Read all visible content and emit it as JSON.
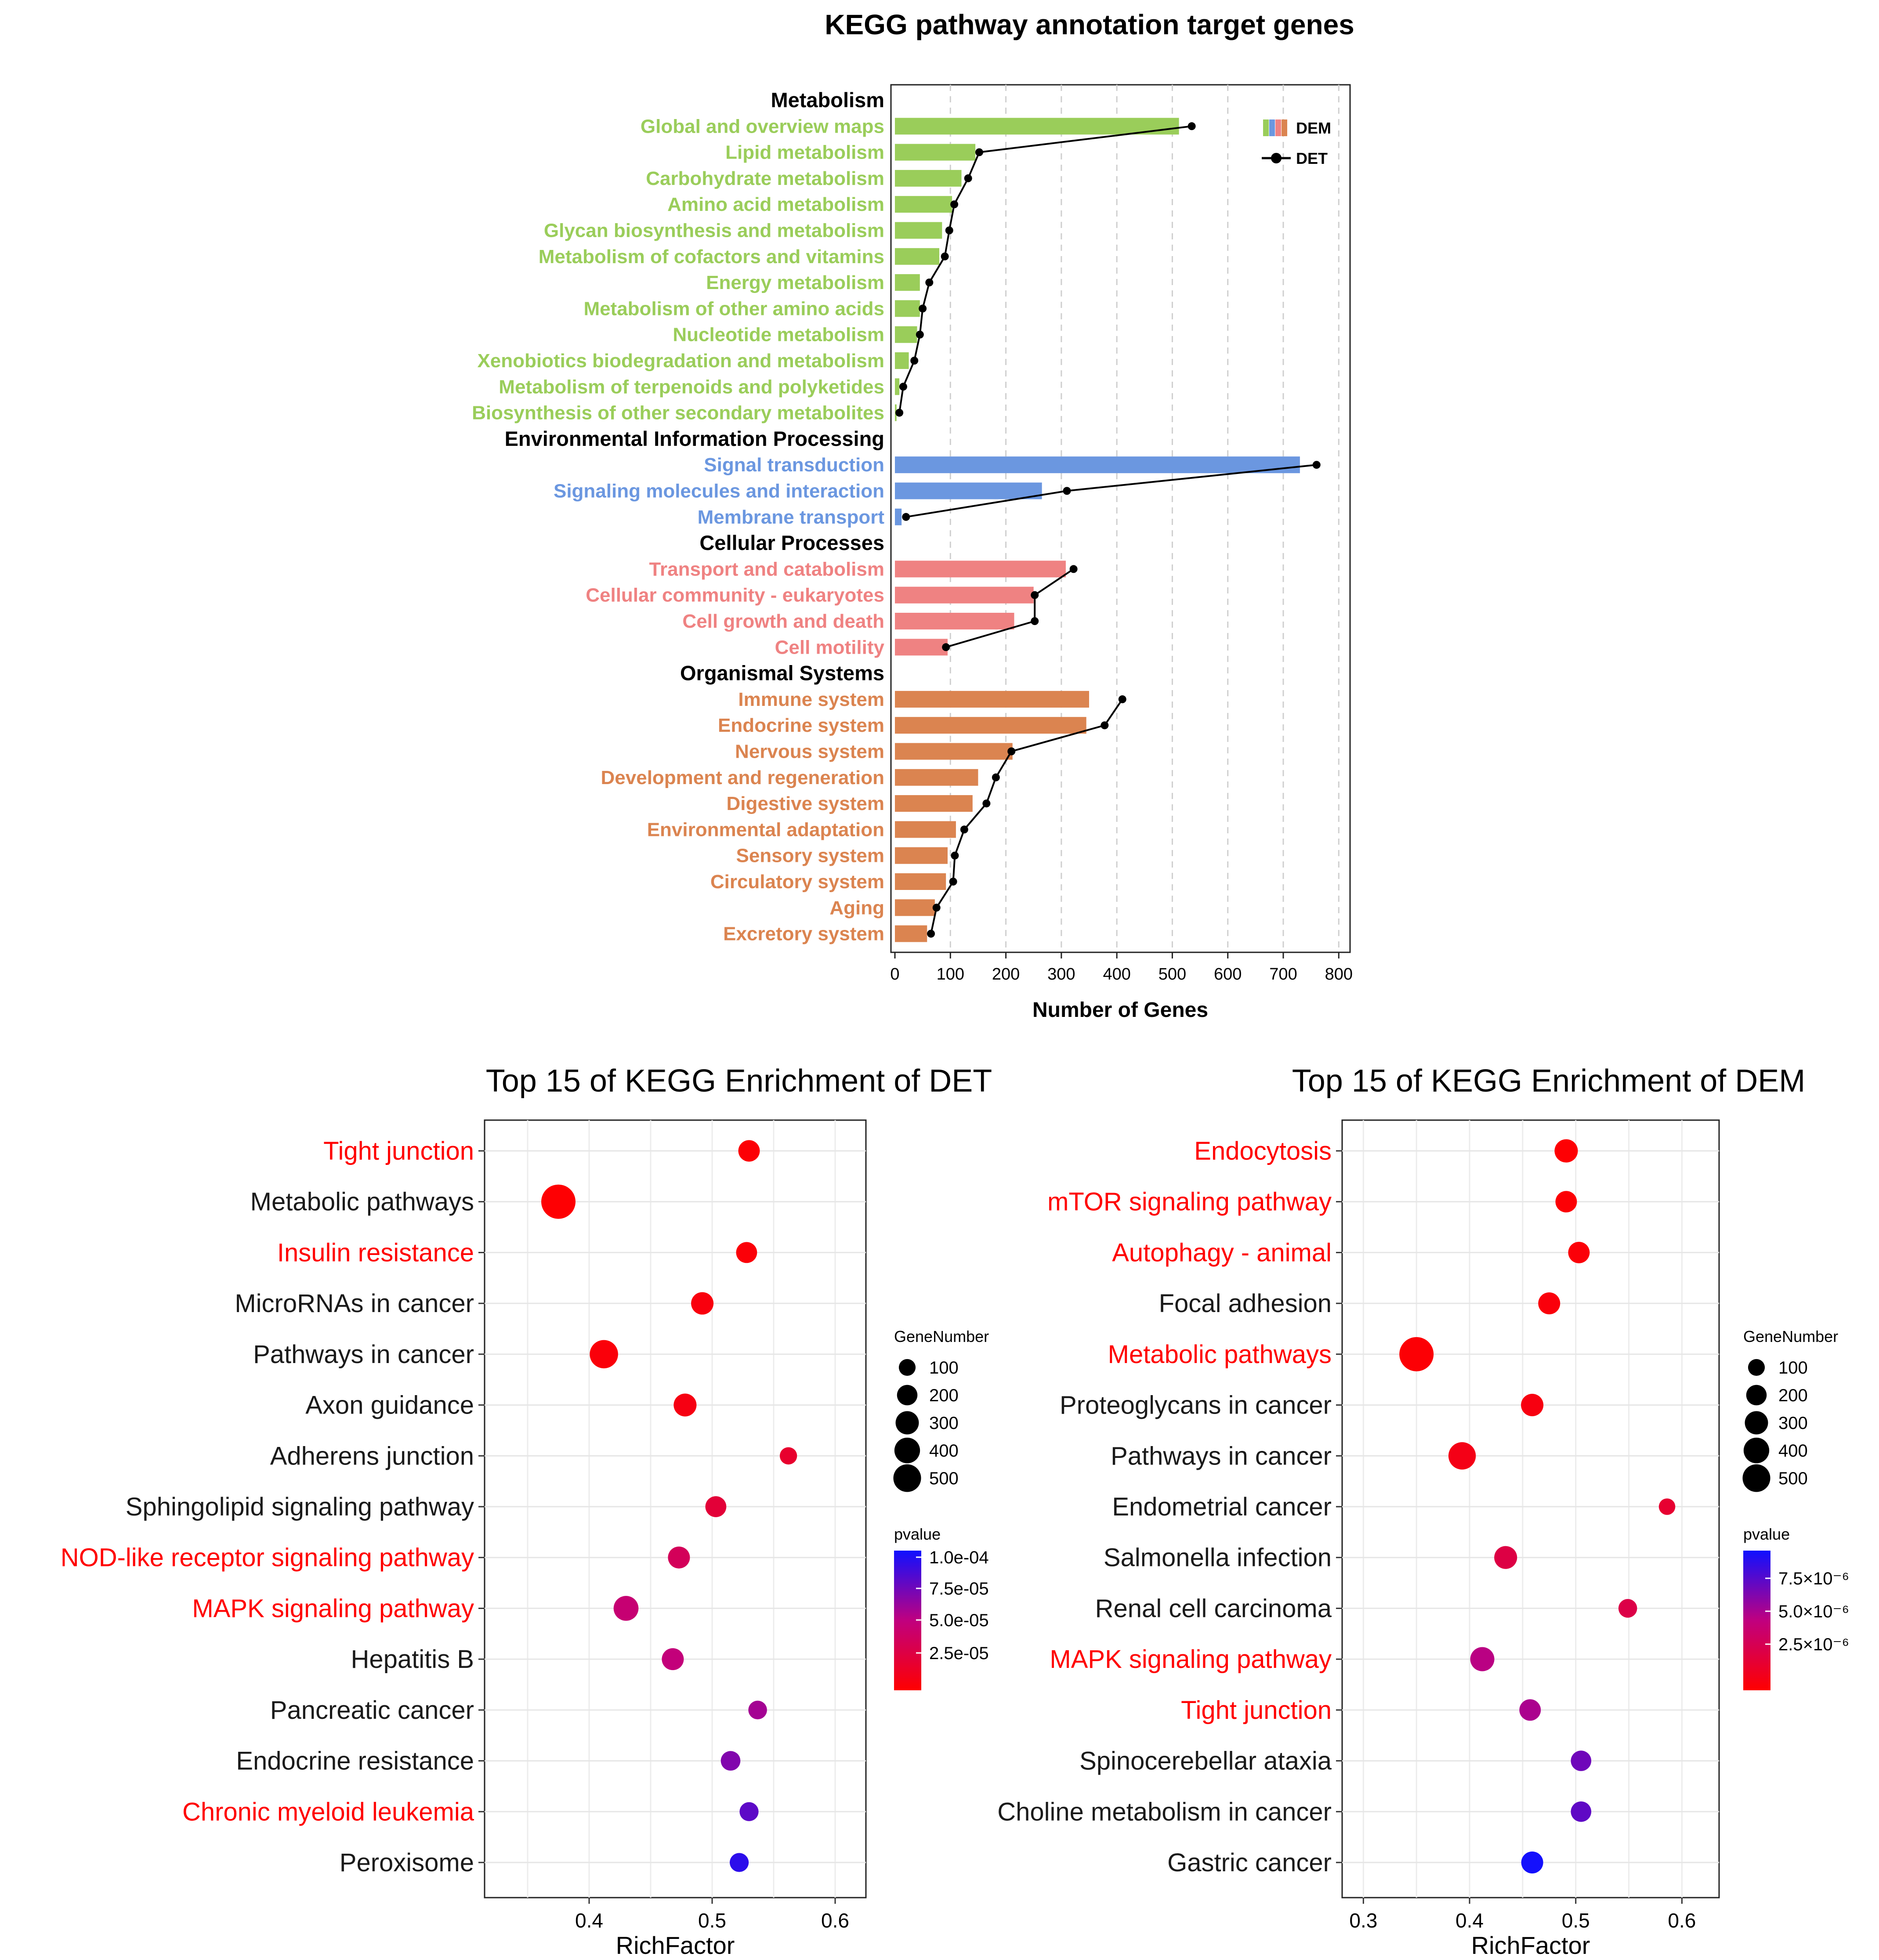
{
  "colors": {
    "metabolism": "#9ACD5A",
    "env": "#6B97E0",
    "cellular": "#EF8282",
    "organismal": "#DB8450",
    "line": "#000000",
    "grid": "#cfcfcf",
    "red_label": "#FF0000",
    "black_label": "#1a1a1a",
    "p_low": "#FF0000",
    "p_high": "#1010FF"
  },
  "chart_data": [
    {
      "type": "bar",
      "title": "KEGG pathway annotation target genes",
      "xlabel": "Number of Genes",
      "xlim": [
        0,
        850
      ],
      "xticks": [
        0,
        100,
        200,
        300,
        400,
        500,
        600,
        700,
        800
      ],
      "legend": {
        "position": "top-right",
        "entries": [
          "DEM",
          "DET"
        ]
      },
      "groups": [
        {
          "name": "Metabolism",
          "color_key": "metabolism",
          "items": [
            {
              "label": "Global and overview maps",
              "dem": 512,
              "det": 535
            },
            {
              "label": "Lipid metabolism",
              "dem": 145,
              "det": 152
            },
            {
              "label": "Carbohydrate metabolism",
              "dem": 120,
              "det": 132
            },
            {
              "label": "Amino acid metabolism",
              "dem": 103,
              "det": 107
            },
            {
              "label": "Glycan biosynthesis and metabolism",
              "dem": 85,
              "det": 98
            },
            {
              "label": "Metabolism of cofactors and vitamins",
              "dem": 80,
              "det": 90
            },
            {
              "label": "Energy metabolism",
              "dem": 45,
              "det": 62
            },
            {
              "label": "Metabolism of other amino acids",
              "dem": 45,
              "det": 50
            },
            {
              "label": "Nucleotide metabolism",
              "dem": 40,
              "det": 45
            },
            {
              "label": "Xenobiotics biodegradation and metabolism",
              "dem": 25,
              "det": 35
            },
            {
              "label": "Metabolism of terpenoids and polyketides",
              "dem": 8,
              "det": 15
            },
            {
              "label": "Biosynthesis of other secondary metabolites",
              "dem": 3,
              "det": 8
            }
          ]
        },
        {
          "name": "Environmental Information Processing",
          "color_key": "env",
          "items": [
            {
              "label": "Signal transduction",
              "dem": 730,
              "det": 760
            },
            {
              "label": "Signaling molecules and interaction",
              "dem": 265,
              "det": 310
            },
            {
              "label": "Membrane transport",
              "dem": 12,
              "det": 20
            }
          ]
        },
        {
          "name": "Cellular Processes",
          "color_key": "cellular",
          "items": [
            {
              "label": "Transport and catabolism",
              "dem": 308,
              "det": 322
            },
            {
              "label": "Cellular community - eukaryotes",
              "dem": 250,
              "det": 252
            },
            {
              "label": "Cell growth and death",
              "dem": 215,
              "det": 252
            },
            {
              "label": "Cell motility",
              "dem": 95,
              "det": 92
            }
          ]
        },
        {
          "name": "Organismal Systems",
          "color_key": "organismal",
          "items": [
            {
              "label": "Immune system",
              "dem": 350,
              "det": 410
            },
            {
              "label": "Endocrine system",
              "dem": 345,
              "det": 378
            },
            {
              "label": "Nervous system",
              "dem": 212,
              "det": 210
            },
            {
              "label": "Development and regeneration",
              "dem": 150,
              "det": 182
            },
            {
              "label": "Digestive system",
              "dem": 140,
              "det": 165
            },
            {
              "label": "Environmental adaptation",
              "dem": 110,
              "det": 125
            },
            {
              "label": "Sensory system",
              "dem": 95,
              "det": 108
            },
            {
              "label": "Circulatory system",
              "dem": 92,
              "det": 105
            },
            {
              "label": "Aging",
              "dem": 72,
              "det": 75
            },
            {
              "label": "Excretory system",
              "dem": 58,
              "det": 65
            }
          ]
        }
      ]
    },
    {
      "type": "scatter",
      "title": "Top 15 of KEGG Enrichment of DET",
      "xlabel": "RichFactor",
      "xlim": [
        0.315,
        0.625
      ],
      "xticks": [
        0.4,
        0.5,
        0.6
      ],
      "xtick_labels": [
        "0.4",
        "0.5",
        "0.6"
      ],
      "size_legend": {
        "title": "GeneNumber",
        "values": [
          100,
          200,
          300,
          400,
          500
        ]
      },
      "color_legend": {
        "title": "pvalue",
        "labels": [
          "1.0e-04",
          "7.5e-05",
          "5.0e-05",
          "2.5e-05"
        ],
        "min": 0.0,
        "max": 0.0001
      },
      "points": [
        {
          "label": "Tight junction",
          "rich": 0.53,
          "genes": 120,
          "p": 2e-06,
          "highlight": true
        },
        {
          "label": "Metabolic pathways",
          "rich": 0.375,
          "genes": 520,
          "p": 1e-06,
          "highlight": false
        },
        {
          "label": "Insulin resistance",
          "rich": 0.528,
          "genes": 110,
          "p": 3e-06,
          "highlight": true
        },
        {
          "label": "MicroRNAs in cancer",
          "rich": 0.492,
          "genes": 140,
          "p": 5e-06,
          "highlight": false
        },
        {
          "label": "Pathways in cancer",
          "rich": 0.412,
          "genes": 300,
          "p": 4e-06,
          "highlight": false
        },
        {
          "label": "Axon guidance",
          "rich": 0.478,
          "genes": 150,
          "p": 7e-06,
          "highlight": false
        },
        {
          "label": "Adherens junction",
          "rich": 0.562,
          "genes": 50,
          "p": 1.8e-05,
          "highlight": false
        },
        {
          "label": "Sphingolipid signaling pathway",
          "rich": 0.503,
          "genes": 110,
          "p": 2.2e-05,
          "highlight": false
        },
        {
          "label": "NOD-like receptor signaling pathway",
          "rich": 0.473,
          "genes": 130,
          "p": 3.5e-05,
          "highlight": true
        },
        {
          "label": "MAPK signaling pathway",
          "rich": 0.43,
          "genes": 200,
          "p": 4.5e-05,
          "highlight": true
        },
        {
          "label": "Hepatitis B",
          "rich": 0.468,
          "genes": 130,
          "p": 4.8e-05,
          "highlight": false
        },
        {
          "label": "Pancreatic cancer",
          "rich": 0.537,
          "genes": 70,
          "p": 5.8e-05,
          "highlight": false
        },
        {
          "label": "Endocrine resistance",
          "rich": 0.515,
          "genes": 85,
          "p": 6.8e-05,
          "highlight": false
        },
        {
          "label": "Chronic myeloid leukemia",
          "rich": 0.53,
          "genes": 75,
          "p": 7.8e-05,
          "highlight": true
        },
        {
          "label": "Peroxisome",
          "rich": 0.522,
          "genes": 75,
          "p": 9.2e-05,
          "highlight": false
        }
      ]
    },
    {
      "type": "scatter",
      "title": "Top 15 of KEGG Enrichment of DEM",
      "xlabel": "RichFactor",
      "xlim": [
        0.28,
        0.635
      ],
      "xticks": [
        0.3,
        0.4,
        0.5,
        0.6
      ],
      "xtick_labels": [
        "0.3",
        "0.4",
        "0.5",
        "0.6"
      ],
      "size_legend": {
        "title": "GeneNumber",
        "values": [
          100,
          200,
          300,
          400,
          500
        ]
      },
      "color_legend": {
        "title": "pvalue",
        "labels": [
          "7.5×10⁻⁶",
          "5.0×10⁻⁶",
          "2.5×10⁻⁶"
        ],
        "min": 0.0,
        "max": 9.3e-06
      },
      "points": [
        {
          "label": "Endocytosis",
          "rich": 0.491,
          "genes": 160,
          "p": 1e-07,
          "highlight": true
        },
        {
          "label": "mTOR signaling pathway",
          "rich": 0.491,
          "genes": 120,
          "p": 2e-07,
          "highlight": true
        },
        {
          "label": "Autophagy - animal",
          "rich": 0.503,
          "genes": 120,
          "p": 3e-07,
          "highlight": true
        },
        {
          "label": "Focal adhesion",
          "rich": 0.475,
          "genes": 130,
          "p": 4e-07,
          "highlight": false
        },
        {
          "label": "Metabolic pathways",
          "rich": 0.35,
          "genes": 520,
          "p": 2e-07,
          "highlight": true
        },
        {
          "label": "Proteoglycans in cancer",
          "rich": 0.459,
          "genes": 140,
          "p": 6e-07,
          "highlight": false
        },
        {
          "label": "Pathways in cancer",
          "rich": 0.393,
          "genes": 270,
          "p": 8e-07,
          "highlight": false
        },
        {
          "label": "Endometrial cancer",
          "rich": 0.586,
          "genes": 40,
          "p": 1.8e-06,
          "highlight": false
        },
        {
          "label": "Salmonella infection",
          "rich": 0.434,
          "genes": 150,
          "p": 2.5e-06,
          "highlight": false
        },
        {
          "label": "Renal cell carcinoma",
          "rich": 0.549,
          "genes": 70,
          "p": 2.6e-06,
          "highlight": false
        },
        {
          "label": "MAPK signaling pathway",
          "rich": 0.412,
          "genes": 180,
          "p": 4.8e-06,
          "highlight": true
        },
        {
          "label": "Tight junction",
          "rich": 0.457,
          "genes": 120,
          "p": 5.2e-06,
          "highlight": true
        },
        {
          "label": "Spinocerebellar ataxia",
          "rich": 0.505,
          "genes": 100,
          "p": 6.8e-06,
          "highlight": false
        },
        {
          "label": "Choline metabolism in cancer",
          "rich": 0.505,
          "genes": 100,
          "p": 7.2e-06,
          "highlight": false
        },
        {
          "label": "Gastric cancer",
          "rich": 0.459,
          "genes": 130,
          "p": 9.2e-06,
          "highlight": false
        }
      ]
    }
  ]
}
